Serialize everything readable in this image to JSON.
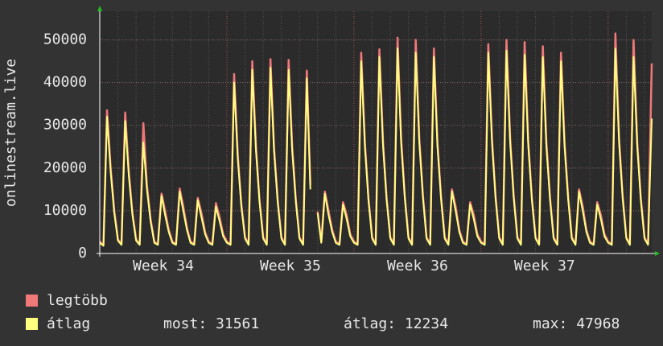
{
  "chart_data": {
    "type": "line",
    "y_label": "onlinestream.live",
    "xlim": [
      34,
      38.343
    ],
    "ylim": [
      0,
      56700
    ],
    "yticks": [
      0,
      10000,
      20000,
      30000,
      40000,
      50000
    ],
    "xticks": [
      {
        "value": 34.5,
        "label": "Week 34"
      },
      {
        "value": 35.5,
        "label": "Week 35"
      },
      {
        "value": 36.5,
        "label": "Week 36"
      },
      {
        "value": 37.5,
        "label": "Week 37"
      }
    ],
    "xgrid": [
      35,
      36,
      37,
      38
    ],
    "grid": true,
    "x": [
      34.0,
      34.029,
      34.057,
      34.086,
      34.114,
      34.143,
      34.171,
      34.2,
      34.229,
      34.257,
      34.286,
      34.314,
      34.343,
      34.371,
      34.4,
      34.429,
      34.457,
      34.486,
      34.514,
      34.543,
      34.571,
      34.6,
      34.629,
      34.657,
      34.686,
      34.714,
      34.743,
      34.771,
      34.8,
      34.829,
      34.857,
      34.886,
      34.914,
      34.943,
      34.971,
      35.0,
      35.029,
      35.057,
      35.086,
      35.114,
      35.143,
      35.171,
      35.2,
      35.229,
      35.257,
      35.286,
      35.314,
      35.343,
      35.371,
      35.4,
      35.429,
      35.457,
      35.486,
      35.514,
      35.543,
      35.571,
      35.6,
      35.629,
      35.657,
      35.686,
      35.714,
      35.743,
      35.771,
      35.8,
      35.829,
      35.857,
      35.886,
      35.914,
      35.943,
      35.971,
      36.0,
      36.029,
      36.057,
      36.086,
      36.114,
      36.143,
      36.171,
      36.2,
      36.229,
      36.257,
      36.286,
      36.314,
      36.343,
      36.371,
      36.4,
      36.429,
      36.457,
      36.486,
      36.514,
      36.543,
      36.571,
      36.6,
      36.629,
      36.657,
      36.686,
      36.714,
      36.743,
      36.771,
      36.8,
      36.829,
      36.857,
      36.886,
      36.914,
      36.943,
      36.971,
      37.0,
      37.029,
      37.057,
      37.086,
      37.114,
      37.143,
      37.171,
      37.2,
      37.229,
      37.257,
      37.286,
      37.314,
      37.343,
      37.371,
      37.4,
      37.429,
      37.457,
      37.486,
      37.514,
      37.543,
      37.571,
      37.6,
      37.629,
      37.657,
      37.686,
      37.714,
      37.743,
      37.771,
      37.8,
      37.829,
      37.857,
      37.886,
      37.914,
      37.943,
      37.971,
      38.0,
      38.029,
      38.057,
      38.086,
      38.114,
      38.143,
      38.171,
      38.2,
      38.229,
      38.257,
      38.286,
      38.314,
      38.343
    ],
    "series": [
      {
        "name": "legtöbb",
        "color": "#f07878",
        "values": [
          2800,
          2000,
          33500,
          20000,
          10000,
          3300,
          2200,
          33000,
          19000,
          9500,
          3300,
          2200,
          30500,
          16000,
          8000,
          2800,
          2200,
          14000,
          10000,
          5500,
          2800,
          2200,
          15200,
          11000,
          6000,
          2800,
          2200,
          13000,
          9500,
          5000,
          2800,
          2200,
          11800,
          8500,
          4500,
          2800,
          2200,
          42000,
          23000,
          11500,
          3800,
          2200,
          45000,
          25000,
          12500,
          3800,
          2200,
          45500,
          25000,
          12500,
          3800,
          2200,
          45300,
          25000,
          12500,
          3800,
          2200,
          42800,
          16000,
          null,
          9800,
          2700,
          14500,
          10000,
          5500,
          2800,
          2200,
          12000,
          9000,
          4500,
          2800,
          2200,
          47000,
          26000,
          13000,
          3800,
          2200,
          47800,
          26000,
          13000,
          3800,
          2200,
          50500,
          27000,
          13500,
          3800,
          2200,
          50000,
          27000,
          13500,
          3800,
          2200,
          48000,
          26000,
          13000,
          3800,
          2200,
          15000,
          11000,
          5500,
          2800,
          2200,
          12000,
          9000,
          4500,
          2800,
          2200,
          49000,
          27000,
          13500,
          3800,
          2200,
          50000,
          27000,
          13500,
          3800,
          2200,
          49500,
          26500,
          13000,
          3800,
          2200,
          48500,
          26000,
          13000,
          3800,
          2200,
          47000,
          26000,
          13000,
          3800,
          2200,
          15000,
          11000,
          5500,
          2800,
          2200,
          12000,
          9000,
          4500,
          2800,
          2200,
          51500,
          27000,
          13500,
          3800,
          2200,
          50000,
          26000,
          13000,
          3800,
          2200,
          44500
        ]
      },
      {
        "name": "átlag",
        "color": "#ffff80",
        "values": [
          2500,
          1800,
          32000,
          19000,
          9500,
          3000,
          2000,
          31000,
          18000,
          9000,
          3000,
          2000,
          26000,
          15000,
          7500,
          2500,
          2000,
          13500,
          9000,
          5000,
          2500,
          2000,
          14500,
          10000,
          5500,
          2500,
          2000,
          12500,
          8500,
          4500,
          2500,
          2000,
          11000,
          7500,
          4000,
          2500,
          2000,
          40000,
          22000,
          11000,
          3500,
          2000,
          43000,
          24000,
          12000,
          3500,
          2000,
          43500,
          24000,
          12000,
          3500,
          2000,
          43000,
          24000,
          12000,
          3500,
          2000,
          41000,
          15000,
          null,
          9500,
          2500,
          14000,
          9000,
          5000,
          2500,
          2000,
          11500,
          8000,
          4000,
          2500,
          2000,
          45000,
          25000,
          12500,
          3500,
          2000,
          46000,
          25000,
          12500,
          3500,
          2000,
          48000,
          26000,
          13000,
          3500,
          2000,
          47000,
          26000,
          13000,
          3500,
          2000,
          46000,
          25000,
          12500,
          3500,
          2000,
          14500,
          10000,
          5000,
          2500,
          2000,
          11500,
          8000,
          4000,
          2500,
          2000,
          47000,
          26000,
          13000,
          3500,
          2000,
          47500,
          26000,
          13000,
          3500,
          2000,
          46500,
          25500,
          12500,
          3500,
          2000,
          46000,
          25000,
          12500,
          3500,
          2000,
          45000,
          25000,
          12500,
          3500,
          2000,
          14500,
          10000,
          5000,
          2500,
          2000,
          11500,
          8000,
          4000,
          2500,
          2000,
          47968,
          26000,
          13000,
          3500,
          2000,
          46000,
          25000,
          12500,
          3500,
          2000,
          31561
        ]
      }
    ],
    "stats": [
      {
        "label": "most:",
        "value": 31561
      },
      {
        "label": "átlag:",
        "value": 12234
      },
      {
        "label": "max:",
        "value": 47968
      }
    ]
  }
}
